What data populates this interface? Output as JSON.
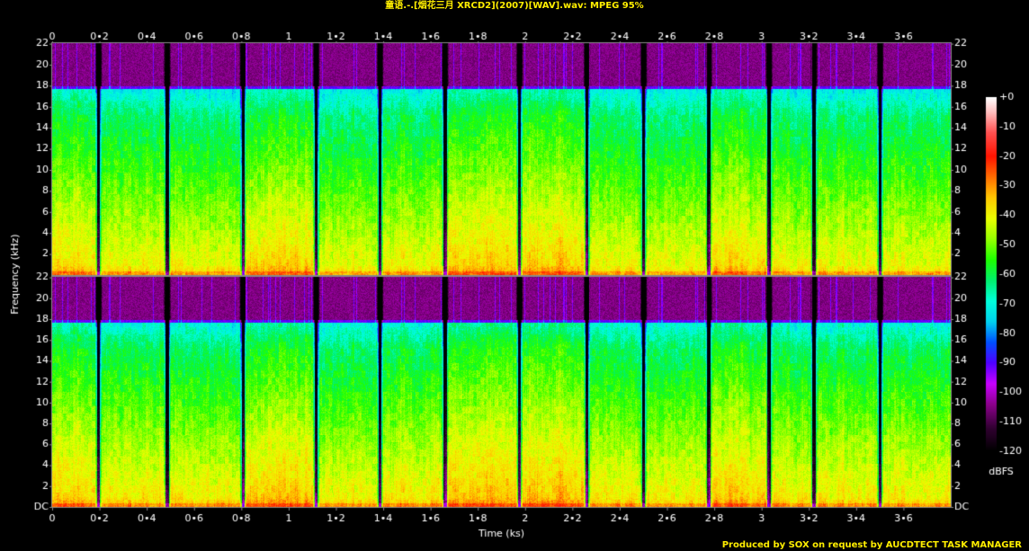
{
  "header": {
    "title": "童语.-.[烟花三月 XRCD2](2007)[WAV].wav: MPEG 95%"
  },
  "footer": {
    "credit": "Produced by SOX on request by AUCDTECT TASK MANAGER"
  },
  "chart_data": {
    "type": "heatmap",
    "title": "童语.-.[烟花三月 XRCD2](2007)[WAV].wav: MPEG 95%",
    "xlabel": "Time (ks)",
    "ylabel": "Frequency (kHz)",
    "colorbar_label": "dBFS",
    "xlim": [
      0,
      3.8
    ],
    "x_ticks": [
      "0",
      "0•2",
      "0•4",
      "0•6",
      "0•8",
      "1",
      "1•2",
      "1•4",
      "1•6",
      "1•8",
      "2",
      "2•2",
      "2•4",
      "2•6",
      "2•8",
      "3",
      "3•2",
      "3•4",
      "3•6"
    ],
    "ylim": [
      0,
      22.05
    ],
    "y_ticks": [
      "DC",
      "2",
      "4",
      "6",
      "8",
      "10",
      "12",
      "14",
      "16",
      "18",
      "20",
      "22"
    ],
    "colorbar_range": [
      -120,
      0
    ],
    "colorbar_ticks": [
      "+0",
      "-10",
      "-20",
      "-30",
      "-40",
      "-50",
      "-60",
      "-70",
      "-80",
      "-90",
      "-100",
      "-110",
      "-120"
    ],
    "channels": 2,
    "lowpass_cutoff_khz": 17.7,
    "track_boundaries_ks": [
      0.195,
      0.485,
      0.805,
      1.115,
      1.385,
      1.66,
      1.975,
      2.26,
      2.5,
      2.775,
      3.03,
      3.22,
      3.5
    ]
  }
}
